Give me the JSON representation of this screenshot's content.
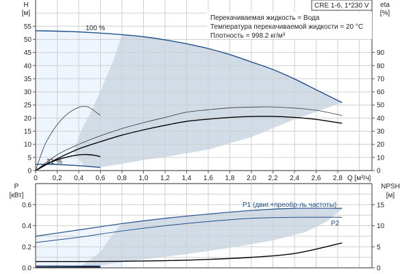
{
  "chart_data": [
    {
      "type": "line",
      "title": "CRE 1-6, 1*230 V",
      "info": [
        "Перекачиваемая жидкость = Вода",
        "Температура перекачиваемой жидкости = 20 °C",
        "Плотность = 998.2 кг/м³"
      ],
      "xlabel": "Q [м³/ч]",
      "ylabel_left": "H",
      "ylabel_left_unit": "[м]",
      "ylabel_right": "eta",
      "ylabel_right_unit": "[%]",
      "xlim": [
        0,
        3.0
      ],
      "ylim_left": [
        0,
        65
      ],
      "ylim_right": [
        0,
        130
      ],
      "x_ticks": [
        "0",
        "0,2",
        "0,4",
        "0,6",
        "0,8",
        "1,0",
        "1,2",
        "1,4",
        "1,6",
        "1,8",
        "2,0",
        "2,2",
        "2,4",
        "2,6",
        "2,8"
      ],
      "y_left_ticks": [
        "0",
        "5",
        "10",
        "15",
        "20",
        "25",
        "30",
        "35",
        "40",
        "45",
        "50",
        "55"
      ],
      "y_right_ticks": [
        "0",
        "10",
        "20",
        "30",
        "40",
        "50",
        "60",
        "70",
        "80",
        "90"
      ],
      "grid": true,
      "annotations": [
        "100 %",
        "21 %"
      ],
      "series": [
        {
          "name": "H 100 %",
          "axis": "left",
          "color": "#1f4e8c",
          "width": 1.4,
          "x": [
            0,
            0.3,
            0.6,
            0.8,
            1.0,
            1.2,
            1.4,
            1.6,
            1.8,
            2.0,
            2.2,
            2.4,
            2.6,
            2.84
          ],
          "y": [
            53.3,
            53.0,
            52.4,
            51.8,
            51.0,
            49.8,
            48.3,
            46.5,
            44.2,
            41.4,
            38.5,
            34.9,
            30.8,
            25.9
          ]
        },
        {
          "name": "H 21 %",
          "axis": "left",
          "color": "#1f4e8c",
          "width": 1.4,
          "x": [
            0,
            0.15,
            0.3,
            0.45,
            0.6
          ],
          "y": [
            2.4,
            2.35,
            2.1,
            1.7,
            1.2
          ]
        },
        {
          "name": "eta 100 % (pump)",
          "axis": "right",
          "color": "#333333",
          "width": 0.8,
          "x": [
            0,
            0.2,
            0.4,
            0.6,
            0.8,
            1.0,
            1.2,
            1.4,
            1.6,
            1.8,
            2.0,
            2.2,
            2.4,
            2.6,
            2.84
          ],
          "y": [
            0,
            12,
            20,
            26.5,
            32,
            36.5,
            40.5,
            44.5,
            46.3,
            47.8,
            48.4,
            48.5,
            47.6,
            46,
            42
          ]
        },
        {
          "name": "eta 100 % (total)",
          "axis": "right",
          "color": "#000000",
          "width": 1.4,
          "x": [
            0,
            0.2,
            0.4,
            0.6,
            0.8,
            1.0,
            1.2,
            1.4,
            1.6,
            1.8,
            2.0,
            2.2,
            2.4,
            2.6,
            2.84
          ],
          "y": [
            0,
            9,
            16.5,
            22,
            27,
            31,
            34.5,
            37.5,
            39.2,
            40.5,
            41.2,
            41.3,
            40.5,
            39,
            36
          ]
        },
        {
          "name": "eta 21 % (pump)",
          "axis": "right",
          "color": "#333333",
          "width": 0.8,
          "x": [
            0,
            0.05,
            0.1,
            0.2,
            0.3,
            0.4,
            0.45,
            0.5,
            0.6
          ],
          "y": [
            0,
            12,
            22,
            35,
            43.5,
            48.2,
            48.8,
            48,
            42
          ]
        },
        {
          "name": "eta 21 % (total)",
          "axis": "right",
          "color": "#000000",
          "width": 1.4,
          "x": [
            0,
            0.1,
            0.2,
            0.3,
            0.4,
            0.48,
            0.55,
            0.6
          ],
          "y": [
            0,
            5,
            8.2,
            10.5,
            12,
            12.2,
            11.6,
            10.6
          ]
        }
      ],
      "regions": [
        {
          "name": "light-range",
          "color": "#eef5fd",
          "x": [
            0,
            0.3,
            0.6,
            0.8,
            0.6,
            0.45,
            0.3,
            0.15,
            0
          ],
          "y": [
            53.3,
            53.0,
            52.4,
            51.8,
            1.2,
            1.7,
            2.1,
            2.35,
            2.4
          ]
        },
        {
          "name": "operating-range",
          "color": "#d1dce7",
          "x": [
            0.8,
            1.0,
            1.2,
            1.4,
            1.6,
            1.8,
            2.0,
            2.2,
            2.4,
            2.6,
            2.84,
            2.4,
            2.0,
            1.6,
            1.2,
            1.0,
            0.8,
            0.6,
            0.45,
            0.35,
            0.42,
            0.52,
            0.62,
            0.72,
            0.8
          ],
          "y": [
            51.8,
            51.0,
            49.8,
            48.3,
            46.5,
            44.2,
            41.4,
            38.5,
            34.9,
            30.8,
            25.9,
            19.5,
            12.8,
            8.0,
            5.2,
            4.0,
            2.6,
            1.2,
            1.7,
            7,
            15,
            23,
            32,
            42,
            51.8
          ]
        }
      ]
    },
    {
      "type": "line",
      "ylabel_left": "P",
      "ylabel_left_unit": "[кВт]",
      "ylabel_right": "NPSH",
      "ylabel_right_unit": "[м]",
      "xlim": [
        0,
        3.0
      ],
      "ylim_left": [
        0,
        0.8
      ],
      "ylim_right": [
        0,
        20
      ],
      "y_left_ticks": [
        "0.0",
        "0.2",
        "0.4",
        "0.6"
      ],
      "y_right_ticks": [
        "0",
        "5",
        "10",
        "15"
      ],
      "grid": true,
      "series_labels": {
        "p1": "P1 (двиг.+преобр-ль частоты)",
        "p2": "P2"
      },
      "series": [
        {
          "name": "P1",
          "axis": "left",
          "color": "#1f4e8c",
          "width": 1.2,
          "x": [
            0,
            0.4,
            0.8,
            1.2,
            1.6,
            2.0,
            2.4,
            2.84
          ],
          "y": [
            0.3,
            0.36,
            0.42,
            0.47,
            0.51,
            0.545,
            0.565,
            0.565
          ]
        },
        {
          "name": "P2",
          "axis": "left",
          "color": "#1f4e8c",
          "width": 1.0,
          "x": [
            0,
            0.4,
            0.8,
            1.2,
            1.6,
            2.0,
            2.4,
            2.84
          ],
          "y": [
            0.24,
            0.29,
            0.35,
            0.4,
            0.44,
            0.47,
            0.48,
            0.48
          ]
        },
        {
          "name": "NPSH",
          "axis": "right",
          "color": "#000000",
          "width": 1.4,
          "x": [
            0,
            0.4,
            0.8,
            1.2,
            1.6,
            2.0,
            2.4,
            2.84
          ],
          "y": [
            1.5,
            1.5,
            1.55,
            1.7,
            2.0,
            2.5,
            3.4,
            5.9
          ]
        },
        {
          "name": "P1 21 %",
          "axis": "left",
          "color": "#1f4e8c",
          "width": 1.2,
          "x": [
            0,
            0.6
          ],
          "y": [
            0.018,
            0.018
          ]
        },
        {
          "name": "P2 21 %",
          "axis": "left",
          "color": "#000000",
          "width": 1.6,
          "x": [
            0,
            0.6
          ],
          "y": [
            0.006,
            0.008
          ]
        }
      ],
      "regions": [
        {
          "name": "light-range",
          "color": "#eef5fd",
          "x": [
            0,
            0.4,
            0.8,
            0.8,
            0.6,
            0
          ],
          "y": [
            0.3,
            0.36,
            0.42,
            0.0,
            0.0,
            0.0
          ]
        },
        {
          "name": "operating-range",
          "color": "#d1dce7",
          "x": [
            0.8,
            1.2,
            1.6,
            2.0,
            2.4,
            2.84,
            2.84,
            2.7,
            2.5,
            2.2,
            1.8,
            1.4,
            1.0,
            0.7,
            0.5,
            0.4,
            0.6,
            0.7,
            0.8
          ],
          "y": [
            0.42,
            0.47,
            0.51,
            0.545,
            0.565,
            0.565,
            0.56,
            0.44,
            0.34,
            0.26,
            0.19,
            0.13,
            0.08,
            0.04,
            0.01,
            0.0,
            0.15,
            0.3,
            0.42
          ]
        }
      ]
    }
  ]
}
